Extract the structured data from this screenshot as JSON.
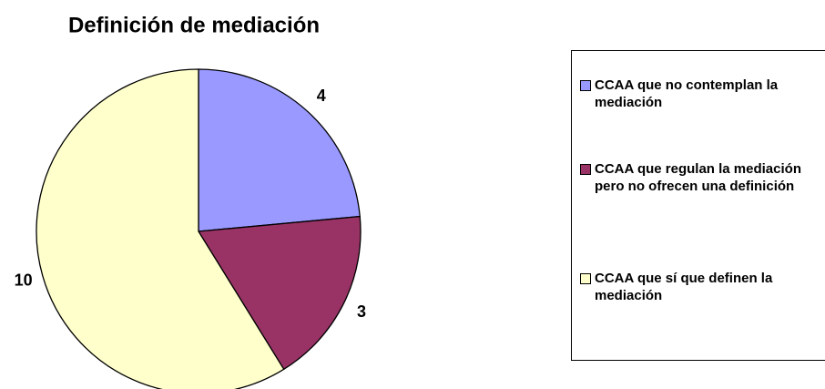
{
  "chart_data": {
    "type": "pie",
    "title": "Definición de mediación",
    "categories": [
      "CCAA que no contemplan la mediación",
      "CCAA que regulan la mediación pero no ofrecen una definición",
      "CCAA que sí que definen la mediación"
    ],
    "values": [
      4,
      3,
      10
    ],
    "colors": [
      "#9999ff",
      "#993366",
      "#ffffcc"
    ],
    "legend": "right"
  }
}
